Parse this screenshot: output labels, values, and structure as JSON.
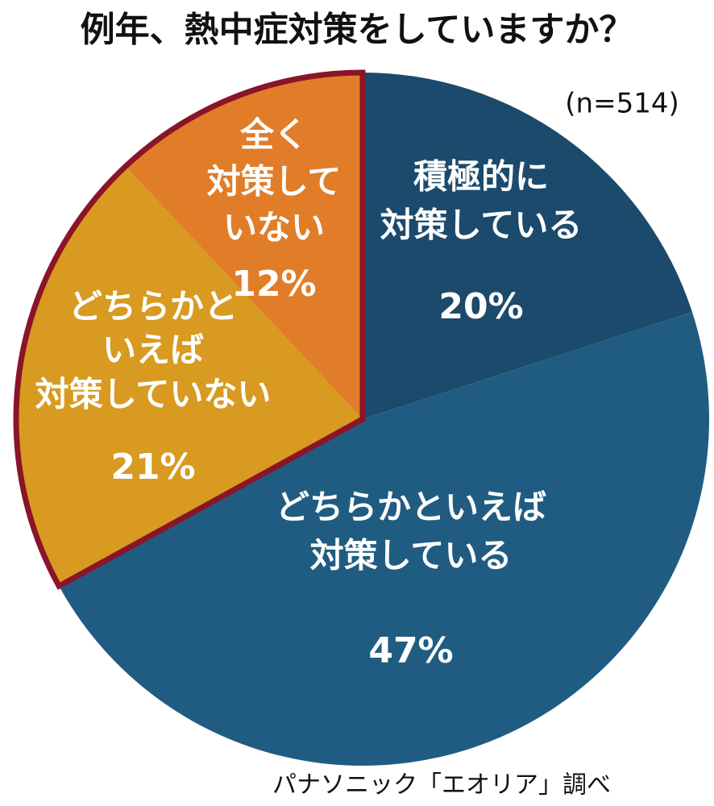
{
  "chart_data": {
    "type": "pie",
    "title": "例年、熱中症対策をしていますか？",
    "annotation": "(n=514)",
    "source": "パナソニック「エオリア」調べ",
    "categories": [
      [
        "積極的に",
        "対策している"
      ],
      [
        "どちらかといえば",
        "対策している"
      ],
      [
        "どちらかと",
        "いえば",
        "対策していない"
      ],
      [
        "全く",
        "対策して",
        "いない"
      ]
    ],
    "values": [
      20,
      47,
      21,
      12
    ],
    "value_labels": [
      "20%",
      "47%",
      "21%",
      "12%"
    ],
    "colors": [
      "#1b4a6c",
      "#205c82",
      "#d89a20",
      "#e17c28"
    ],
    "highlight_color": "#8a1428"
  }
}
